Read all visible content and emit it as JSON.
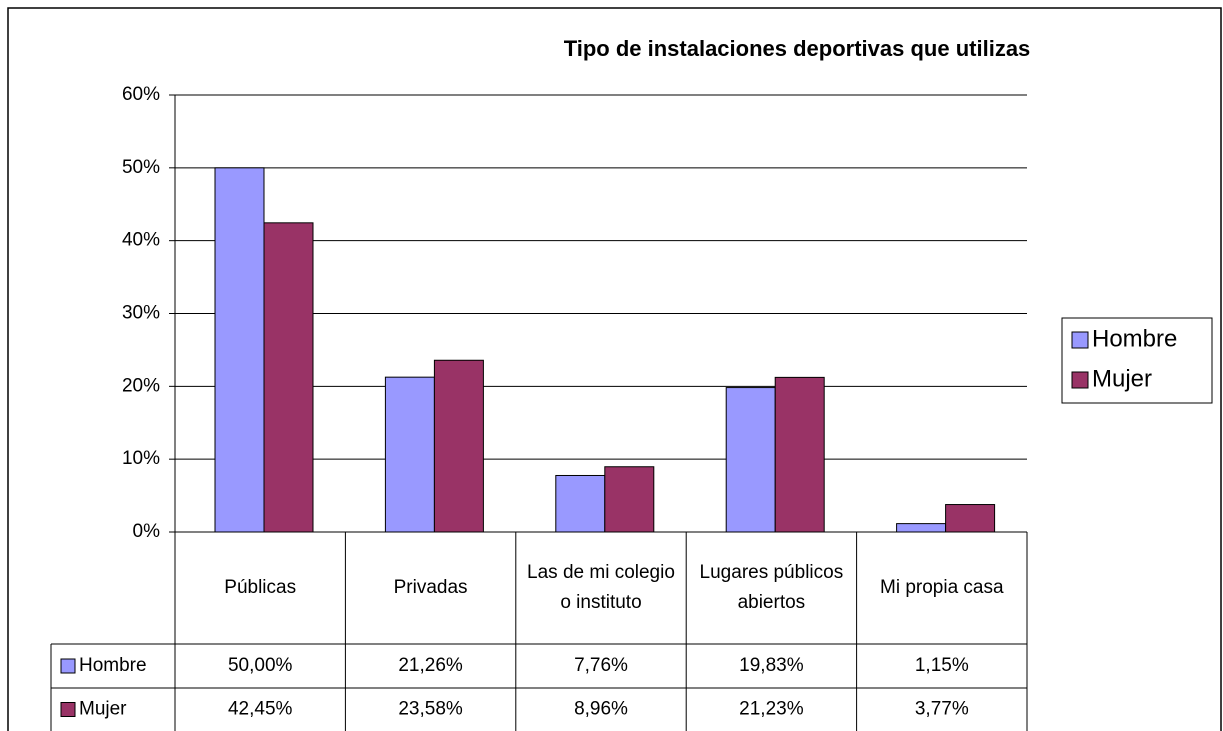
{
  "chart_data": {
    "type": "bar",
    "title": "Tipo de instalaciones deportivas que utilizas",
    "categories": [
      "Públicas",
      "Privadas",
      "Las de mi colegio o instituto",
      "Lugares públicos abiertos",
      "Mi propia casa"
    ],
    "series": [
      {
        "name": "Hombre",
        "color": "#9999ff",
        "values": [
          50,
          21.26,
          7.76,
          19.83,
          1.15
        ],
        "value_labels": [
          "50,00%",
          "21,26%",
          "7,76%",
          "19,83%",
          "1,15%"
        ]
      },
      {
        "name": "Mujer",
        "color": "#993366",
        "values": [
          42.45,
          23.58,
          8.96,
          21.23,
          3.77
        ],
        "value_labels": [
          "42,45%",
          "23,58%",
          "8,96%",
          "21,23%",
          "3,77%"
        ]
      }
    ],
    "ylim": [
      0,
      60
    ],
    "yticks": [
      {
        "value": 0,
        "label": "0%"
      },
      {
        "value": 10,
        "label": "10%"
      },
      {
        "value": 20,
        "label": "20%"
      },
      {
        "value": 30,
        "label": "30%"
      },
      {
        "value": 40,
        "label": "40%"
      },
      {
        "value": 50,
        "label": "50%"
      },
      {
        "value": 60,
        "label": "60%"
      }
    ],
    "grid": true,
    "legend": "right"
  }
}
